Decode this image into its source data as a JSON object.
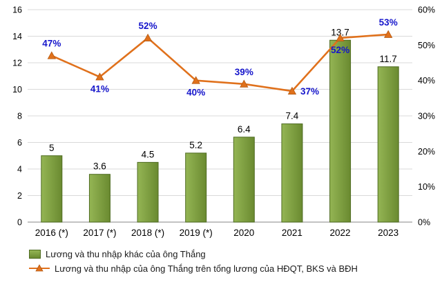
{
  "chart_data": {
    "type": "combo",
    "categories": [
      "2016 (*)",
      "2017 (*)",
      "2018 (*)",
      "2019 (*)",
      "2020",
      "2021",
      "2022",
      "2023"
    ],
    "series": [
      {
        "name": "Lương và thu nhập khác của ông Thắng",
        "type": "bar",
        "axis": "left",
        "values": [
          5,
          3.6,
          4.5,
          5.2,
          6.4,
          7.4,
          13.7,
          11.7
        ],
        "labels": [
          "5",
          "3.6",
          "4.5",
          "5.2",
          "6.4",
          "7.4",
          "13.7",
          "11.7"
        ]
      },
      {
        "name": "Lương và thu nhập của ông Thắng trên tổng lương của HĐQT, BKS và BĐH",
        "type": "line",
        "axis": "right",
        "values": [
          47,
          41,
          52,
          40,
          39,
          37,
          52,
          53
        ],
        "labels": [
          "47%",
          "41%",
          "52%",
          "40%",
          "39%",
          "37%",
          "52%",
          "53%"
        ],
        "label_positions": [
          "above",
          "below",
          "above",
          "below",
          "above",
          "right",
          "below",
          "above"
        ]
      }
    ],
    "left_axis": {
      "min": 0,
      "max": 16,
      "step": 2,
      "ticks": [
        "0",
        "2",
        "4",
        "6",
        "8",
        "10",
        "12",
        "14",
        "16"
      ]
    },
    "right_axis": {
      "min": 0,
      "max": 60,
      "step": 10,
      "ticks": [
        "0%",
        "10%",
        "20%",
        "30%",
        "40%",
        "50%",
        "60%"
      ]
    },
    "grid": true,
    "legend_position": "bottom-left",
    "colors": {
      "bar_fill_light": "#94B554",
      "bar_fill_dark": "#6A8A30",
      "bar_border": "#4E6B21",
      "line": "#E0711C",
      "line_marker_border": "#B55A12",
      "line_label": "#1515CB",
      "bar_label": "#000000",
      "axis_text": "#000000",
      "grid": "#D9D9D9",
      "axis_line": "#9E9E9E"
    }
  },
  "legend": {
    "items": [
      {
        "label": "Lương và thu nhập khác của ông Thắng",
        "marker": "bar-swatch"
      },
      {
        "label": "Lương và thu nhập của ông Thắng trên tổng lương của HĐQT, BKS và BĐH",
        "marker": "line-triangle"
      }
    ]
  }
}
